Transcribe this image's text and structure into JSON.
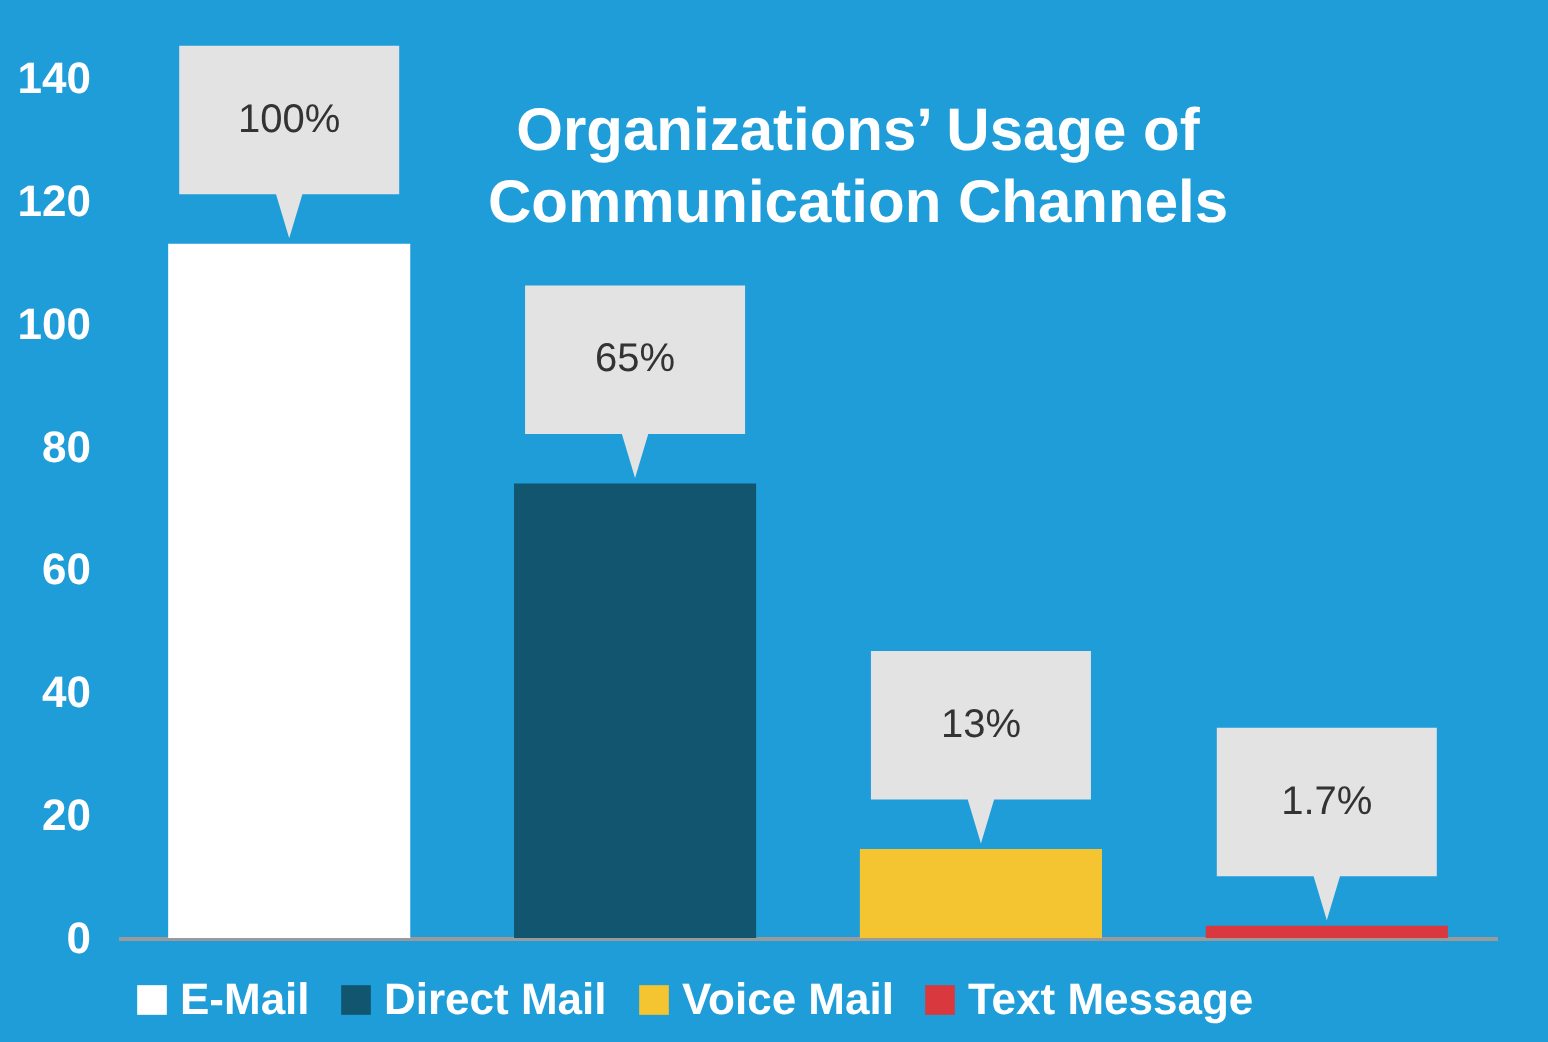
{
  "chart_data": {
    "type": "bar",
    "title": "Organizations’ Usage of\nCommunication Channels",
    "categories": [
      null
    ],
    "series": [
      {
        "name": "E-Mail",
        "color": "#ffffff",
        "values": [
          113
        ]
      },
      {
        "name": "Direct Mail",
        "color": "#11566e",
        "values": [
          74
        ]
      },
      {
        "name": "Voice Mail",
        "color": "#f4c531",
        "values": [
          14.5
        ]
      },
      {
        "name": "Text Message",
        "color": "#d9393e",
        "values": [
          2
        ]
      }
    ],
    "annotations": [
      "100%",
      "65%",
      "13%",
      "1.7%"
    ],
    "ylim": [
      0,
      140
    ],
    "yticks": [
      0,
      20,
      40,
      60,
      80,
      100,
      120,
      140
    ],
    "tick_labels": "y",
    "legend": "bottom",
    "grid": false
  }
}
